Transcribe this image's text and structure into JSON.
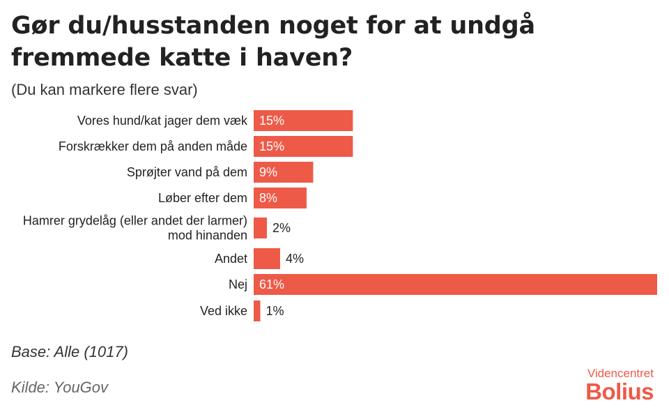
{
  "header": {
    "title": "Gør du/husstanden noget for at undgå fremmede katte i haven?",
    "subtitle": "(Du kan markere flere svar)"
  },
  "footer": {
    "base": "Base: Alle (1017)",
    "source": "Kilde: YouGov"
  },
  "logo": {
    "line1": "Videncentret",
    "line2": "Bolius"
  },
  "colors": {
    "bar": "#ee5a48",
    "label_inside": "#ffffff",
    "label_outside": "#222222"
  },
  "chart_data": {
    "type": "bar",
    "orientation": "horizontal",
    "categories": [
      "Vores hund/kat jager dem væk",
      "Forskrækker dem på anden måde",
      "Sprøjter vand på dem",
      "Løber efter dem",
      "Hamrer grydelåg (eller andet der larmer) mod hinanden",
      "Andet",
      "Nej",
      "Ved ikke"
    ],
    "category_lines": [
      [
        "Vores hund/kat jager dem væk"
      ],
      [
        "Forskrækker dem på anden måde"
      ],
      [
        "Sprøjter vand på dem"
      ],
      [
        "Løber efter dem"
      ],
      [
        "Hamrer grydelåg (eller andet der larmer)",
        "mod hinanden"
      ],
      [
        "Andet"
      ],
      [
        "Nej"
      ],
      [
        "Ved ikke"
      ]
    ],
    "values": [
      15,
      15,
      9,
      8,
      2,
      4,
      61,
      1
    ],
    "value_labels": [
      "15%",
      "15%",
      "9%",
      "8%",
      "2%",
      "4%",
      "61%",
      "1%"
    ],
    "unit": "%",
    "xlim": [
      0,
      61
    ],
    "grid": false,
    "legend": "none"
  }
}
